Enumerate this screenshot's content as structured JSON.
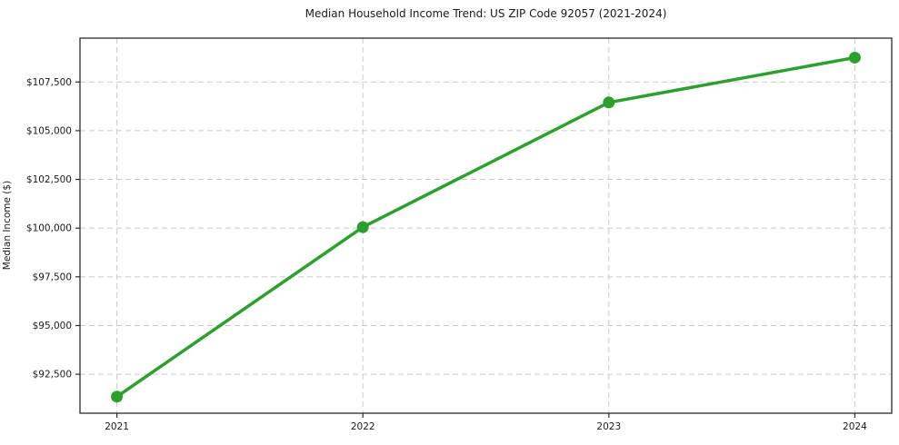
{
  "chart_data": {
    "type": "line",
    "title": "Median Household Income Trend: US ZIP Code 92057 (2021-2024)",
    "xlabel": "",
    "ylabel": "Median Income ($)",
    "x": [
      2021,
      2022,
      2023,
      2024
    ],
    "xtick_labels": [
      "2021",
      "2022",
      "2023",
      "2024"
    ],
    "series": [
      {
        "name": "Median Household Income",
        "values": [
          91350,
          100050,
          106450,
          108750
        ]
      }
    ],
    "yticks": [
      92500,
      95000,
      97500,
      100000,
      102500,
      105000,
      107500
    ],
    "ytick_labels": [
      "$92,500",
      "$95,000",
      "$97,500",
      "$100,000",
      "$102,500",
      "$105,000",
      "$107,500"
    ],
    "xlim": [
      2020.85,
      2024.15
    ],
    "ylim": [
      90500,
      109750
    ],
    "grid": true,
    "grid_style": "dashed",
    "legend_position": "none",
    "colors": {
      "line": "#2ca02c",
      "marker": "#2ca02c",
      "grid": "#c9c9c9",
      "spine": "#2b2b2b",
      "text": "#1a1a1a",
      "background": "#ffffff"
    }
  }
}
